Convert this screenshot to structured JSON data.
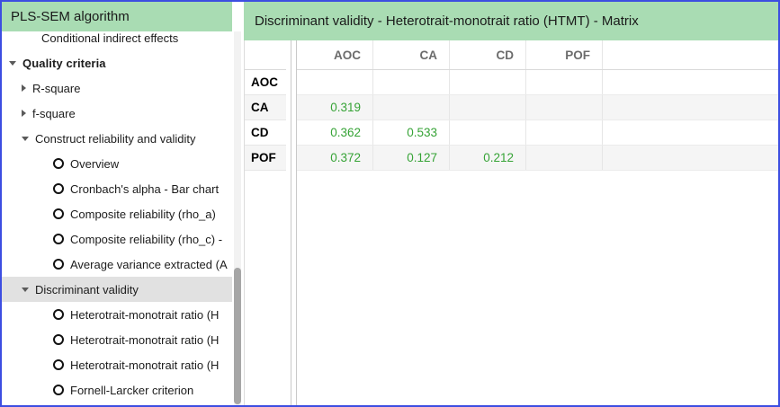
{
  "sidebar": {
    "title": "PLS-SEM algorithm",
    "tree": [
      {
        "label": "Conditional indirect effects",
        "icon": "none"
      },
      {
        "label": "Quality criteria",
        "icon": "triangle-down-icon"
      },
      {
        "label": "R-square",
        "icon": "triangle-right-icon"
      },
      {
        "label": "f-square",
        "icon": "triangle-right-icon"
      },
      {
        "label": "Construct reliability and validity",
        "icon": "triangle-down-icon"
      },
      {
        "label": "Overview",
        "icon": "circle-icon"
      },
      {
        "label": "Cronbach's alpha - Bar chart",
        "icon": "circle-icon"
      },
      {
        "label": "Composite reliability (rho_a)",
        "icon": "circle-icon"
      },
      {
        "label": "Composite reliability (rho_c) -",
        "icon": "circle-icon"
      },
      {
        "label": "Average variance extracted (A",
        "icon": "circle-icon"
      },
      {
        "label": "Discriminant validity",
        "icon": "triangle-down-icon",
        "selected": true
      },
      {
        "label": "Heterotrait-monotrait ratio (H",
        "icon": "circle-icon"
      },
      {
        "label": "Heterotrait-monotrait ratio (H",
        "icon": "circle-icon"
      },
      {
        "label": "Heterotrait-monotrait ratio (H",
        "icon": "circle-icon"
      },
      {
        "label": "Fornell-Larcker criterion",
        "icon": "circle-icon"
      }
    ]
  },
  "main": {
    "title": "Discriminant validity - Heterotrait-monotrait ratio (HTMT) - Matrix",
    "matrix": {
      "columns": [
        "AOC",
        "CA",
        "CD",
        "POF"
      ],
      "rows": [
        {
          "label": "AOC",
          "values": [
            "",
            "",
            "",
            ""
          ]
        },
        {
          "label": "CA",
          "values": [
            "0.319",
            "",
            "",
            ""
          ]
        },
        {
          "label": "CD",
          "values": [
            "0.362",
            "0.533",
            "",
            ""
          ]
        },
        {
          "label": "POF",
          "values": [
            "0.372",
            "0.127",
            "0.212",
            ""
          ]
        }
      ]
    }
  },
  "colors": {
    "header_green": "#a9dcb3",
    "window_border_blue": "#3d4ee1",
    "value_green": "#36a336",
    "selected_row_gray": "#e1e1e1",
    "column_header_gray": "#6b6b6b"
  }
}
